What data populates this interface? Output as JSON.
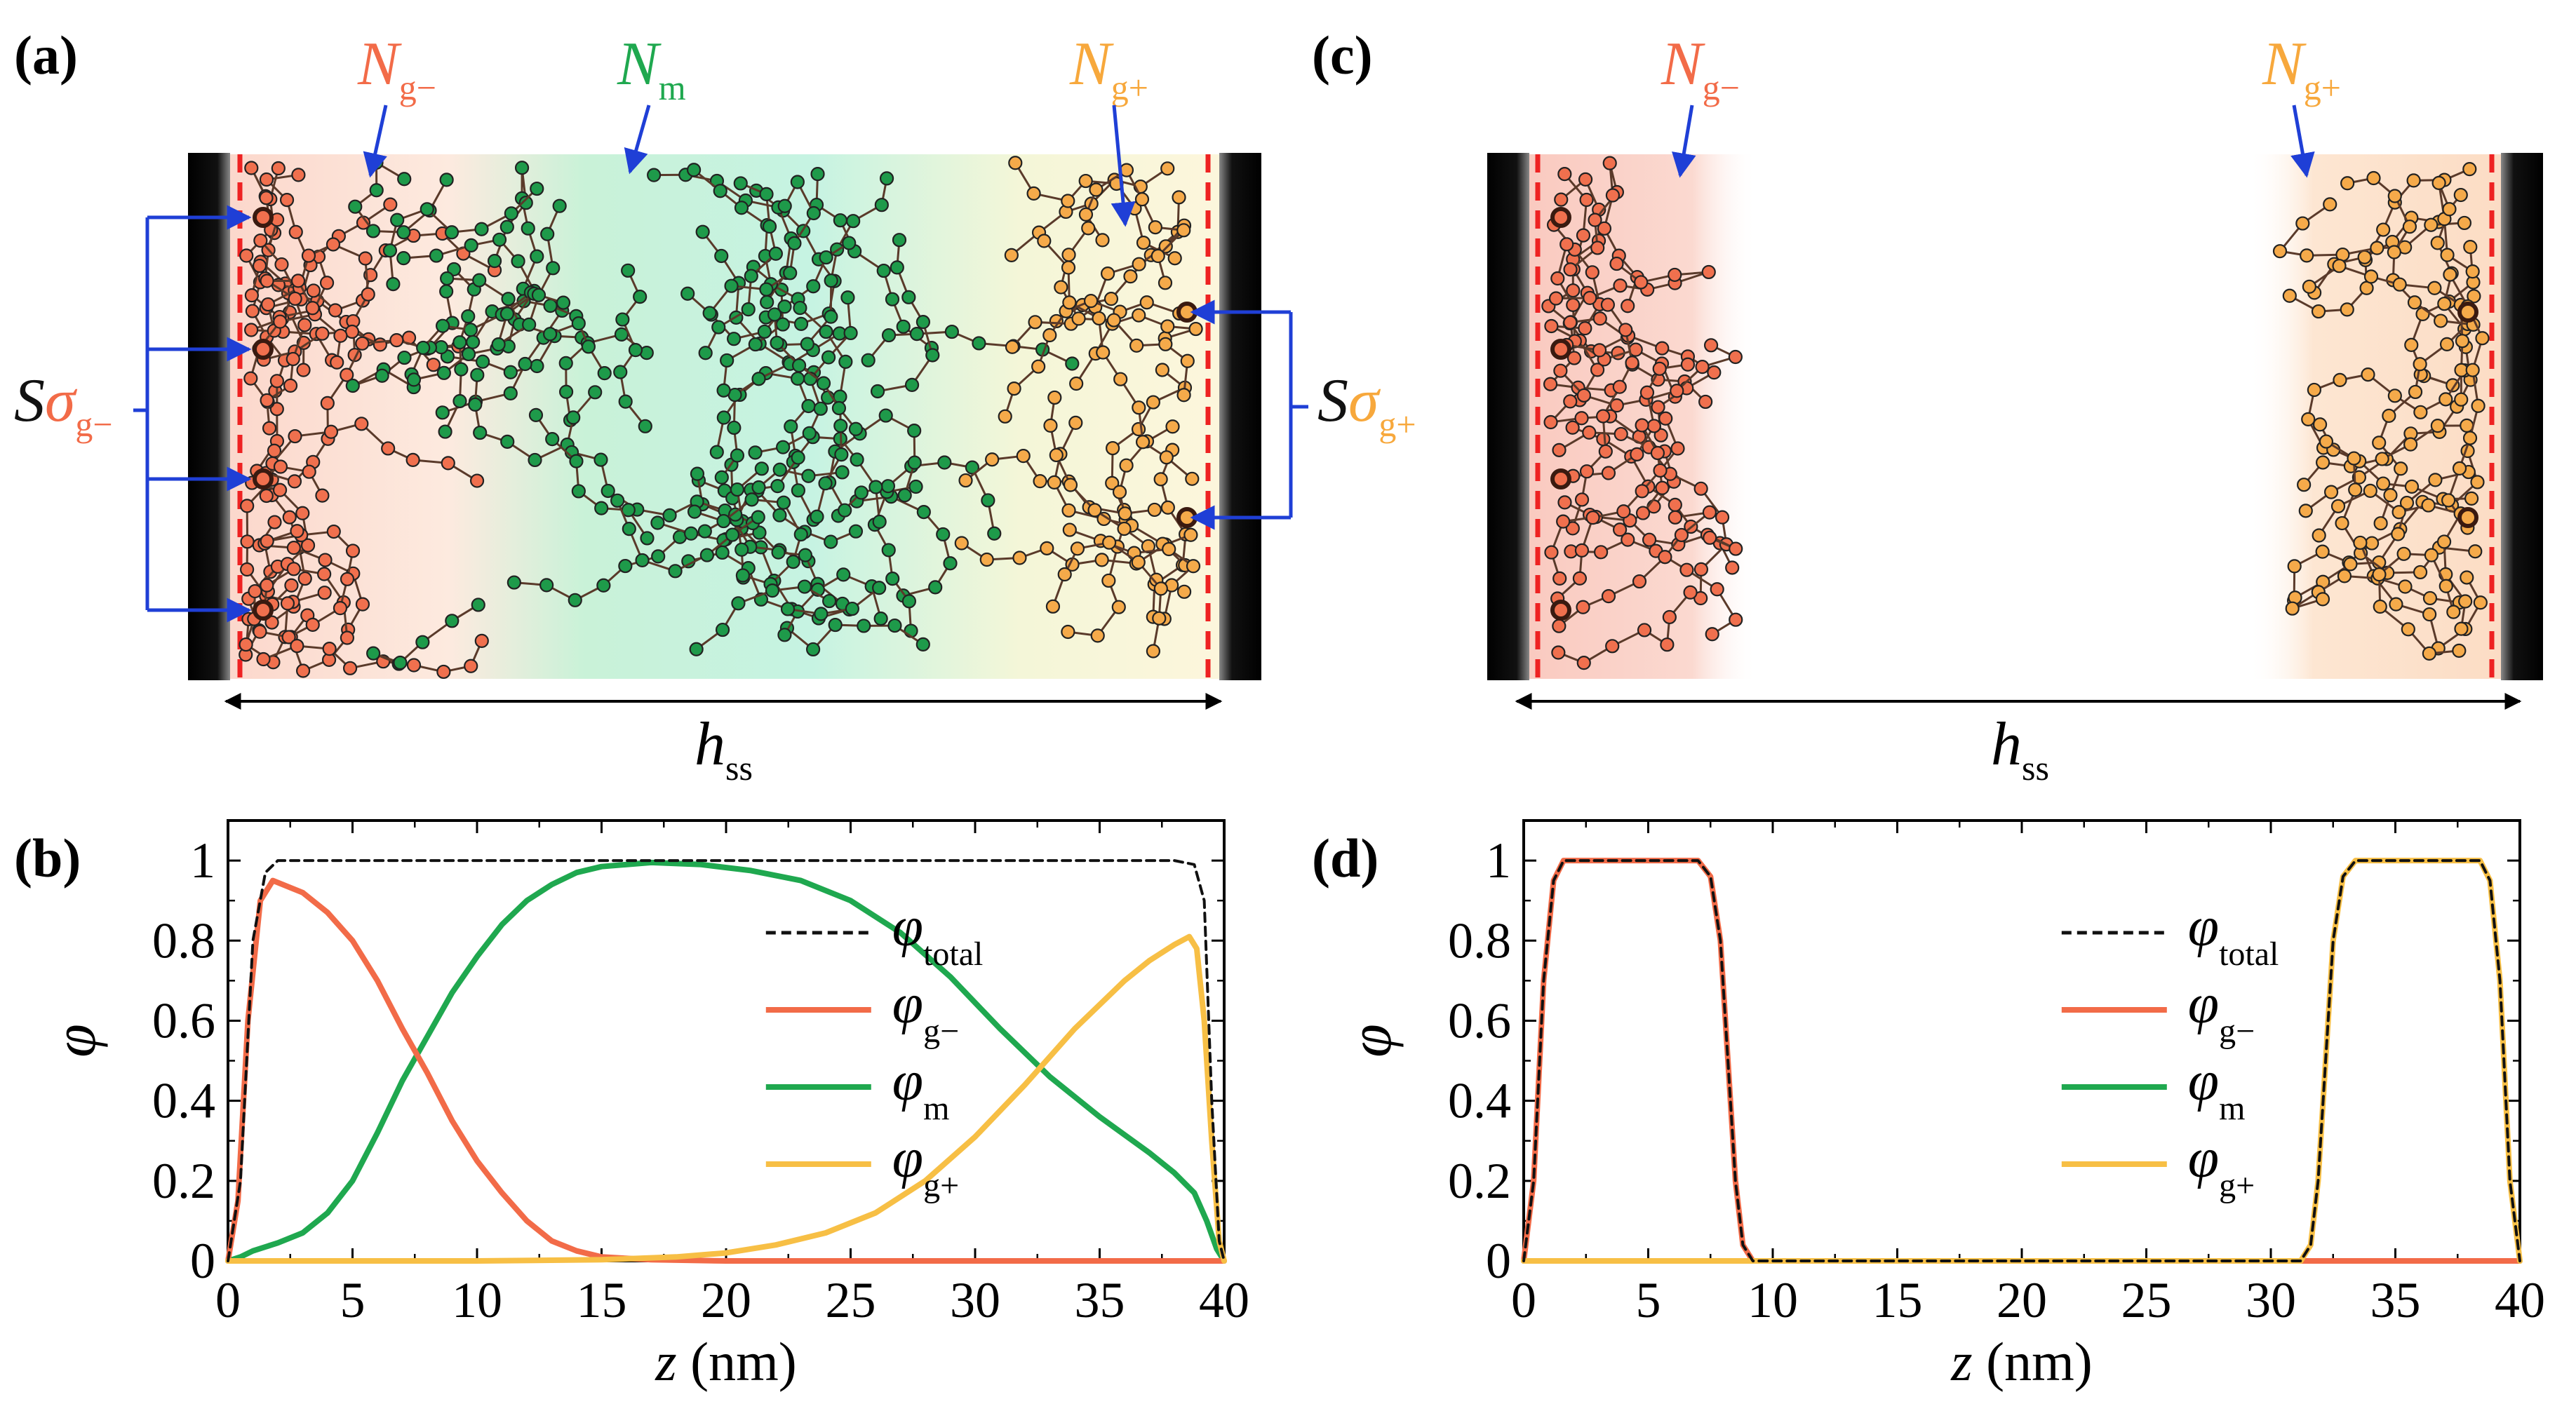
{
  "panels": {
    "a": {
      "label": "(a)",
      "n_minus": {
        "sym": "N",
        "sub": "g−"
      },
      "n_m": {
        "sym": "N",
        "sub": "m"
      },
      "n_plus": {
        "sym": "N",
        "sub": "g+"
      },
      "s_minus": {
        "s": "S",
        "sig": "σ",
        "sub": "g−"
      },
      "s_plus": {
        "s": "S",
        "sig": "σ",
        "sub": "g+"
      },
      "h": {
        "sym": "h",
        "sub": "ss"
      }
    },
    "c": {
      "label": "(c)",
      "n_minus": {
        "sym": "N",
        "sub": "g−"
      },
      "n_plus": {
        "sym": "N",
        "sub": "g+"
      },
      "h": {
        "sym": "h",
        "sub": "ss"
      }
    },
    "b": {
      "label": "(b)"
    },
    "d": {
      "label": "(d)"
    }
  },
  "colors": {
    "g_minus": "#f26b48",
    "m": "#1fa84f",
    "g_plus": "#f7bf45",
    "total": "#111111",
    "bead_minus": "#f0704e",
    "bead_m": "#1e9a4a",
    "bead_plus": "#f5aa4a",
    "arrow_blue": "#1f3fd6",
    "wall_dash": "#ee2222"
  },
  "chart_data": [
    {
      "panel": "b",
      "type": "line",
      "xlabel": {
        "sym": "z",
        "unit": "(nm)"
      },
      "ylabel": "φ",
      "xlim": [
        0,
        40
      ],
      "ylim": [
        0,
        1.1
      ],
      "xticks": [
        "0",
        "5",
        "10",
        "15",
        "20",
        "25",
        "30",
        "35",
        "40"
      ],
      "yticks": [
        "0",
        "0.2",
        "0.4",
        "0.6",
        "0.8",
        "1"
      ],
      "legend": [
        {
          "key": "total",
          "sym": "φ",
          "sub": "total",
          "style": "dashed"
        },
        {
          "key": "g_minus",
          "sym": "φ",
          "sub": "g−",
          "style": "solid"
        },
        {
          "key": "m",
          "sym": "φ",
          "sub": "m",
          "style": "solid"
        },
        {
          "key": "g_plus",
          "sym": "φ",
          "sub": "g+",
          "style": "solid"
        }
      ],
      "series": {
        "total": [
          [
            0,
            0
          ],
          [
            0.5,
            0.2
          ],
          [
            1,
            0.8
          ],
          [
            1.5,
            0.97
          ],
          [
            2,
            1
          ],
          [
            10,
            1
          ],
          [
            20,
            1
          ],
          [
            30,
            1
          ],
          [
            38,
            1
          ],
          [
            38.8,
            0.99
          ],
          [
            39.2,
            0.9
          ],
          [
            39.5,
            0.4
          ],
          [
            39.8,
            0.05
          ],
          [
            40,
            0
          ]
        ],
        "g_minus": [
          [
            0,
            0
          ],
          [
            0.4,
            0.15
          ],
          [
            0.8,
            0.6
          ],
          [
            1.3,
            0.9
          ],
          [
            1.8,
            0.95
          ],
          [
            3,
            0.92
          ],
          [
            4,
            0.87
          ],
          [
            5,
            0.8
          ],
          [
            6,
            0.7
          ],
          [
            7,
            0.58
          ],
          [
            8,
            0.47
          ],
          [
            9,
            0.35
          ],
          [
            10,
            0.25
          ],
          [
            11,
            0.17
          ],
          [
            12,
            0.1
          ],
          [
            13,
            0.05
          ],
          [
            14,
            0.025
          ],
          [
            15,
            0.01
          ],
          [
            17,
            0.003
          ],
          [
            20,
            0
          ],
          [
            30,
            0
          ],
          [
            40,
            0
          ]
        ],
        "m": [
          [
            0,
            0
          ],
          [
            0.5,
            0.01
          ],
          [
            1,
            0.025
          ],
          [
            2,
            0.045
          ],
          [
            3,
            0.07
          ],
          [
            4,
            0.12
          ],
          [
            5,
            0.2
          ],
          [
            6,
            0.32
          ],
          [
            7,
            0.45
          ],
          [
            8,
            0.56
          ],
          [
            9,
            0.67
          ],
          [
            10,
            0.76
          ],
          [
            11,
            0.84
          ],
          [
            12,
            0.9
          ],
          [
            13,
            0.94
          ],
          [
            14,
            0.97
          ],
          [
            15,
            0.985
          ],
          [
            17,
            0.995
          ],
          [
            19,
            0.99
          ],
          [
            21,
            0.975
          ],
          [
            23,
            0.95
          ],
          [
            25,
            0.9
          ],
          [
            27,
            0.82
          ],
          [
            29,
            0.71
          ],
          [
            31,
            0.58
          ],
          [
            33,
            0.46
          ],
          [
            35,
            0.36
          ],
          [
            37,
            0.27
          ],
          [
            38,
            0.22
          ],
          [
            38.8,
            0.17
          ],
          [
            39.3,
            0.1
          ],
          [
            39.7,
            0.03
          ],
          [
            40,
            0
          ]
        ],
        "g_plus": [
          [
            0,
            0
          ],
          [
            10,
            0
          ],
          [
            15,
            0.003
          ],
          [
            18,
            0.01
          ],
          [
            20,
            0.02
          ],
          [
            22,
            0.04
          ],
          [
            24,
            0.07
          ],
          [
            26,
            0.12
          ],
          [
            28,
            0.2
          ],
          [
            30,
            0.31
          ],
          [
            32,
            0.44
          ],
          [
            34,
            0.58
          ],
          [
            36,
            0.7
          ],
          [
            37,
            0.75
          ],
          [
            38,
            0.79
          ],
          [
            38.6,
            0.81
          ],
          [
            38.9,
            0.78
          ],
          [
            39.2,
            0.6
          ],
          [
            39.5,
            0.3
          ],
          [
            39.8,
            0.05
          ],
          [
            40,
            0
          ]
        ]
      }
    },
    {
      "panel": "d",
      "type": "line",
      "xlabel": {
        "sym": "z",
        "unit": "(nm)"
      },
      "ylabel": "φ",
      "xlim": [
        0,
        40
      ],
      "ylim": [
        0,
        1.1
      ],
      "xticks": [
        "0",
        "5",
        "10",
        "15",
        "20",
        "25",
        "30",
        "35",
        "40"
      ],
      "yticks": [
        "0",
        "0.2",
        "0.4",
        "0.6",
        "0.8",
        "1"
      ],
      "legend": [
        {
          "key": "total",
          "sym": "φ",
          "sub": "total",
          "style": "dashed"
        },
        {
          "key": "g_minus",
          "sym": "φ",
          "sub": "g−",
          "style": "solid"
        },
        {
          "key": "m",
          "sym": "φ",
          "sub": "m",
          "style": "solid"
        },
        {
          "key": "g_plus",
          "sym": "φ",
          "sub": "g+",
          "style": "solid"
        }
      ],
      "series": {
        "g_minus": [
          [
            0,
            0
          ],
          [
            0.4,
            0.2
          ],
          [
            0.8,
            0.7
          ],
          [
            1.2,
            0.95
          ],
          [
            1.6,
            1
          ],
          [
            7,
            1
          ],
          [
            7.5,
            0.96
          ],
          [
            7.9,
            0.8
          ],
          [
            8.2,
            0.5
          ],
          [
            8.5,
            0.2
          ],
          [
            8.8,
            0.04
          ],
          [
            9.2,
            0
          ],
          [
            40,
            0
          ]
        ],
        "m": [
          [
            0,
            0
          ],
          [
            40,
            0
          ]
        ],
        "g_plus": [
          [
            0,
            0
          ],
          [
            31.2,
            0
          ],
          [
            31.6,
            0.04
          ],
          [
            31.9,
            0.2
          ],
          [
            32.2,
            0.5
          ],
          [
            32.5,
            0.8
          ],
          [
            32.9,
            0.96
          ],
          [
            33.4,
            1
          ],
          [
            38.4,
            1
          ],
          [
            38.8,
            0.95
          ],
          [
            39.2,
            0.7
          ],
          [
            39.6,
            0.2
          ],
          [
            40,
            0
          ]
        ],
        "total": [
          [
            0,
            0
          ],
          [
            0.4,
            0.2
          ],
          [
            0.8,
            0.7
          ],
          [
            1.2,
            0.95
          ],
          [
            1.6,
            1
          ],
          [
            7,
            1
          ],
          [
            7.5,
            0.96
          ],
          [
            7.9,
            0.8
          ],
          [
            8.2,
            0.5
          ],
          [
            8.5,
            0.2
          ],
          [
            8.8,
            0.04
          ],
          [
            9.2,
            0
          ],
          [
            31.2,
            0
          ],
          [
            31.6,
            0.04
          ],
          [
            31.9,
            0.2
          ],
          [
            32.2,
            0.5
          ],
          [
            32.5,
            0.8
          ],
          [
            32.9,
            0.96
          ],
          [
            33.4,
            1
          ],
          [
            38.4,
            1
          ],
          [
            38.8,
            0.95
          ],
          [
            39.2,
            0.7
          ],
          [
            39.6,
            0.2
          ],
          [
            40,
            0
          ]
        ]
      }
    }
  ]
}
